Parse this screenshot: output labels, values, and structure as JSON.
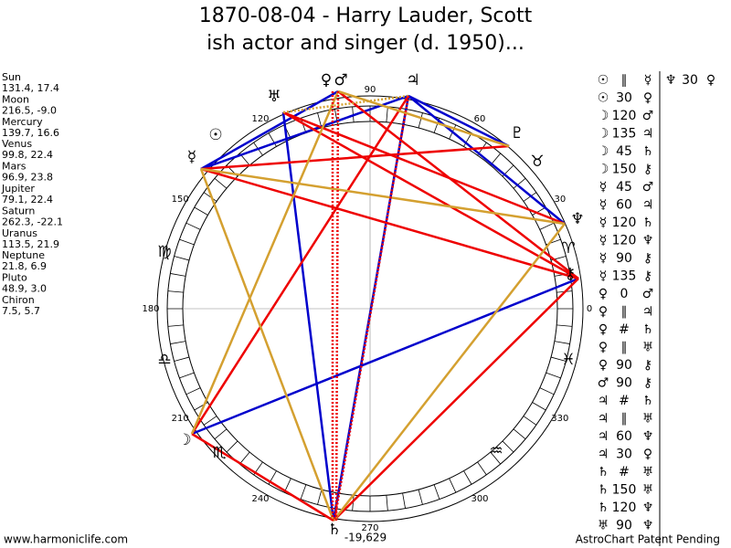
{
  "title": [
    "1870-08-04 - Harry Lauder, Scott",
    "ish actor and singer (d. 1950)..."
  ],
  "positions": [
    {
      "name": "Sun",
      "value": "131.4, 17.4"
    },
    {
      "name": "Moon",
      "value": "216.5, -9.0"
    },
    {
      "name": "Mercury",
      "value": "139.7, 16.6"
    },
    {
      "name": "Venus",
      "value": "99.8, 22.4"
    },
    {
      "name": "Mars",
      "value": "96.9, 23.8"
    },
    {
      "name": "Jupiter",
      "value": "79.1, 22.4"
    },
    {
      "name": "Saturn",
      "value": "262.3, -22.1"
    },
    {
      "name": "Uranus",
      "value": "113.5, 21.9"
    },
    {
      "name": "Neptune",
      "value": "21.8, 6.9"
    },
    {
      "name": "Pluto",
      "value": "48.9, 3.0"
    },
    {
      "name": "Chiron",
      "value": "7.5, 5.7"
    }
  ],
  "wheel": {
    "degree_labels": [
      0,
      30,
      60,
      90,
      120,
      150,
      180,
      210,
      240,
      270,
      300,
      330
    ],
    "planets": [
      "☉",
      "☽",
      "☿",
      "♀",
      "♂",
      "♃",
      "♄",
      "♅",
      "♆",
      "♇",
      "⚷"
    ],
    "signs": [
      "♈",
      "♉",
      "♍",
      "♎",
      "♏",
      "♒",
      "♓"
    ],
    "score": "-19,629"
  },
  "aspects": [
    [
      "☉",
      "∥",
      "☿"
    ],
    [
      "☉",
      "30",
      "♀"
    ],
    [
      "☽",
      "120",
      "♂"
    ],
    [
      "☽",
      "135",
      "♃"
    ],
    [
      "☽",
      "45",
      "♄"
    ],
    [
      "☽",
      "150",
      "⚷"
    ],
    [
      "☿",
      "45",
      "♂"
    ],
    [
      "☿",
      "60",
      "♃"
    ],
    [
      "☿",
      "120",
      "♄"
    ],
    [
      "☿",
      "120",
      "♆"
    ],
    [
      "☿",
      "90",
      "⚷"
    ],
    [
      "☿",
      "135",
      "⚷"
    ],
    [
      "♀",
      "0",
      "♂"
    ],
    [
      "♀",
      "∥",
      "♃"
    ],
    [
      "♀",
      "#",
      "♄"
    ],
    [
      "♀",
      "∥",
      "♅"
    ],
    [
      "♀",
      "90",
      "⚷"
    ],
    [
      "♂",
      "90",
      "⚷"
    ],
    [
      "♃",
      "#",
      "♄"
    ],
    [
      "♃",
      "∥",
      "♅"
    ],
    [
      "♃",
      "60",
      "♆"
    ],
    [
      "♃",
      "30",
      "♀"
    ],
    [
      "♄",
      "#",
      "♅"
    ],
    [
      "♄",
      "150",
      "♅"
    ],
    [
      "♄",
      "120",
      "♆"
    ],
    [
      "♅",
      "90",
      "♆"
    ]
  ],
  "aspects_extra": [
    "♆",
    "30",
    "♀"
  ],
  "footer": {
    "left": "www.harmoniclife.com",
    "right": "AstroChart Patent Pending"
  }
}
